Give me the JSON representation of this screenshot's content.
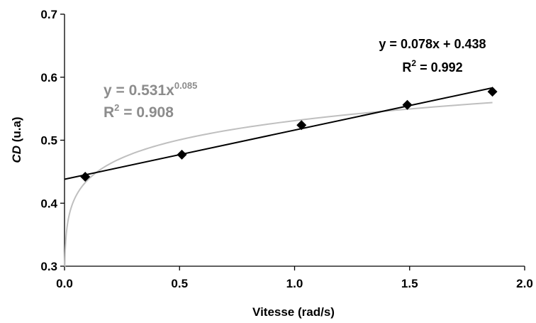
{
  "chart_data": {
    "type": "scatter",
    "title": "",
    "xlabel": "Vitesse (rad/s)",
    "ylabel": {
      "main": "CD",
      "unit": " (u.a)"
    },
    "xlim": [
      0.0,
      2.0
    ],
    "ylim": [
      0.3,
      0.7
    ],
    "xticks": [
      "0.0",
      "0.5",
      "1.0",
      "1.5",
      "2.0"
    ],
    "yticks": [
      "0.3",
      "0.4",
      "0.5",
      "0.6",
      "0.7"
    ],
    "grid": false,
    "series": [
      {
        "x": [
          0.09,
          0.51,
          1.03,
          1.49,
          1.86
        ],
        "y": [
          0.442,
          0.477,
          0.524,
          0.556,
          0.577
        ],
        "color": "#000000",
        "marker": "diamond"
      }
    ],
    "trendlines": [
      {
        "kind": "linear",
        "slope": 0.078,
        "intercept": 0.438,
        "x_range": [
          0.0,
          1.86
        ],
        "color": "#000000",
        "equation": {
          "lhs": "y = 0.078x + 0.438",
          "r2_prefix": "R",
          "r2_exp": "2",
          "r2_value": " = 0.992"
        }
      },
      {
        "kind": "power",
        "coefficient": 0.531,
        "exponent": 0.085,
        "x_range": [
          0.0,
          1.86
        ],
        "color": "#bfbfbf",
        "equation": {
          "lhs": "y = 0.531x",
          "exp": "0.085",
          "r2_prefix": "R",
          "r2_exp": "2",
          "r2_value": " = 0.908"
        }
      }
    ],
    "equation_colors": {
      "linear": "#000000",
      "power": "#8c8c8c"
    }
  }
}
